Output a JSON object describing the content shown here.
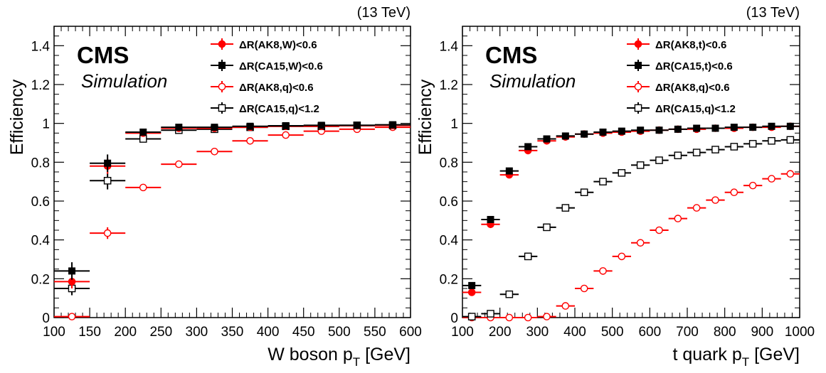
{
  "colors": {
    "red": "#ff0000",
    "black": "#000000"
  },
  "chart_data": [
    {
      "type": "scatter",
      "energy_label": "(13 TeV)",
      "cms_label": "CMS",
      "simulation_label": "Simulation",
      "xlabel": "W boson p",
      "xlabel_sub": "T",
      "xlabel_unit": "[GeV]",
      "ylabel": "Efficiency",
      "xlim": [
        100,
        600
      ],
      "ylim": [
        0,
        1.5
      ],
      "x_ticks": [
        "100",
        "150",
        "200",
        "250",
        "300",
        "350",
        "400",
        "450",
        "500",
        "550",
        "600"
      ],
      "y_ticks": [
        "0",
        "0.2",
        "0.4",
        "0.6",
        "0.8",
        "1",
        "1.2",
        "1.4"
      ],
      "bin_edges": [
        100,
        150,
        200,
        250,
        300,
        350,
        400,
        450,
        500,
        550,
        600
      ],
      "series": [
        {
          "name": "ΔR(AK8,W)<0.6",
          "color": "red",
          "marker": "circle-filled",
          "x": [
            125,
            175,
            225,
            275,
            325,
            375,
            425,
            475,
            525,
            575
          ],
          "y": [
            0.185,
            0.78,
            0.95,
            0.975,
            0.975,
            0.98,
            0.985,
            0.985,
            0.988,
            0.99
          ],
          "err": [
            0.035,
            0.04,
            0.01,
            0.005,
            0.005,
            0.004,
            0.004,
            0.004,
            0.004,
            0.004
          ]
        },
        {
          "name": "ΔR(CA15,W)<0.6",
          "color": "black",
          "marker": "square-filled",
          "x": [
            125,
            175,
            225,
            275,
            325,
            375,
            425,
            475,
            525,
            575
          ],
          "y": [
            0.24,
            0.795,
            0.955,
            0.98,
            0.98,
            0.985,
            0.988,
            0.99,
            0.99,
            0.993
          ],
          "err": [
            0.045,
            0.045,
            0.012,
            0.006,
            0.005,
            0.004,
            0.004,
            0.004,
            0.004,
            0.004
          ]
        },
        {
          "name": "ΔR(AK8,q)<0.6",
          "color": "red",
          "marker": "circle-open",
          "x": [
            125,
            175,
            225,
            275,
            325,
            375,
            425,
            475,
            525,
            575
          ],
          "y": [
            0.005,
            0.435,
            0.67,
            0.79,
            0.855,
            0.91,
            0.94,
            0.96,
            0.97,
            0.98
          ],
          "err": [
            0.005,
            0.03,
            0.01,
            0.008,
            0.006,
            0.005,
            0.004,
            0.004,
            0.004,
            0.004
          ]
        },
        {
          "name": "ΔR(CA15,q)<1.2",
          "color": "black",
          "marker": "square-open",
          "x": [
            125,
            175,
            225,
            275,
            325,
            375,
            425,
            475,
            525,
            575
          ],
          "y": [
            0.15,
            0.705,
            0.92,
            0.965,
            0.97,
            0.98,
            0.985,
            0.985,
            0.99,
            0.99
          ],
          "err": [
            0.035,
            0.045,
            0.012,
            0.006,
            0.005,
            0.004,
            0.004,
            0.004,
            0.004,
            0.004
          ]
        }
      ]
    },
    {
      "type": "scatter",
      "energy_label": "(13 TeV)",
      "cms_label": "CMS",
      "simulation_label": "Simulation",
      "xlabel": "t quark p",
      "xlabel_sub": "T",
      "xlabel_unit": "[GeV]",
      "ylabel": "Efficiency",
      "xlim": [
        100,
        1000
      ],
      "ylim": [
        0,
        1.5
      ],
      "x_ticks": [
        "100",
        "200",
        "300",
        "400",
        "500",
        "600",
        "700",
        "800",
        "900",
        "1000"
      ],
      "y_ticks": [
        "0",
        "0.2",
        "0.4",
        "0.6",
        "0.8",
        "1",
        "1.2",
        "1.4"
      ],
      "bin_edges": [
        100,
        150,
        200,
        250,
        300,
        350,
        400,
        450,
        500,
        550,
        600,
        650,
        700,
        750,
        800,
        850,
        900,
        950,
        1000
      ],
      "series": [
        {
          "name": "ΔR(AK8,t)<0.6",
          "color": "red",
          "marker": "circle-filled",
          "x": [
            125,
            175,
            225,
            275,
            325,
            375,
            425,
            475,
            525,
            575,
            625,
            675,
            725,
            775,
            825,
            875,
            925,
            975
          ],
          "y": [
            0.13,
            0.48,
            0.735,
            0.86,
            0.91,
            0.93,
            0.945,
            0.95,
            0.955,
            0.96,
            0.965,
            0.97,
            0.97,
            0.975,
            0.975,
            0.98,
            0.98,
            0.985
          ],
          "err": [
            0.01,
            0.01,
            0.008,
            0.005,
            0.004,
            0.003,
            0.003,
            0.003,
            0.003,
            0.003,
            0.003,
            0.003,
            0.003,
            0.003,
            0.003,
            0.003,
            0.003,
            0.003
          ]
        },
        {
          "name": "ΔR(CA15,t)<0.6",
          "color": "black",
          "marker": "square-filled",
          "x": [
            125,
            175,
            225,
            275,
            325,
            375,
            425,
            475,
            525,
            575,
            625,
            675,
            725,
            775,
            825,
            875,
            925,
            975
          ],
          "y": [
            0.165,
            0.505,
            0.755,
            0.88,
            0.92,
            0.935,
            0.945,
            0.955,
            0.96,
            0.965,
            0.965,
            0.97,
            0.975,
            0.975,
            0.98,
            0.98,
            0.985,
            0.985
          ],
          "err": [
            0.01,
            0.01,
            0.008,
            0.005,
            0.004,
            0.003,
            0.003,
            0.003,
            0.003,
            0.003,
            0.003,
            0.003,
            0.003,
            0.003,
            0.003,
            0.003,
            0.003,
            0.003
          ]
        },
        {
          "name": "ΔR(AK8,q)<0.6",
          "color": "red",
          "marker": "circle-open",
          "x": [
            125,
            175,
            225,
            275,
            325,
            375,
            425,
            475,
            525,
            575,
            625,
            675,
            725,
            775,
            825,
            875,
            925,
            975
          ],
          "y": [
            0.0,
            0.0,
            0.0,
            0.0,
            0.005,
            0.06,
            0.15,
            0.24,
            0.315,
            0.385,
            0.45,
            0.51,
            0.565,
            0.605,
            0.645,
            0.68,
            0.715,
            0.74
          ],
          "err": [
            0.002,
            0.002,
            0.002,
            0.002,
            0.002,
            0.004,
            0.005,
            0.005,
            0.005,
            0.005,
            0.005,
            0.005,
            0.005,
            0.005,
            0.005,
            0.005,
            0.005,
            0.005
          ]
        },
        {
          "name": "ΔR(CA15,q)<1.2",
          "color": "black",
          "marker": "square-open",
          "x": [
            125,
            175,
            225,
            275,
            325,
            375,
            425,
            475,
            525,
            575,
            625,
            675,
            725,
            775,
            825,
            875,
            925,
            975
          ],
          "y": [
            0.005,
            0.02,
            0.12,
            0.315,
            0.465,
            0.565,
            0.645,
            0.7,
            0.745,
            0.785,
            0.81,
            0.835,
            0.85,
            0.865,
            0.88,
            0.895,
            0.91,
            0.915
          ],
          "err": [
            0.003,
            0.004,
            0.006,
            0.006,
            0.005,
            0.005,
            0.005,
            0.004,
            0.004,
            0.004,
            0.004,
            0.004,
            0.004,
            0.004,
            0.004,
            0.004,
            0.004,
            0.004
          ]
        }
      ]
    }
  ]
}
